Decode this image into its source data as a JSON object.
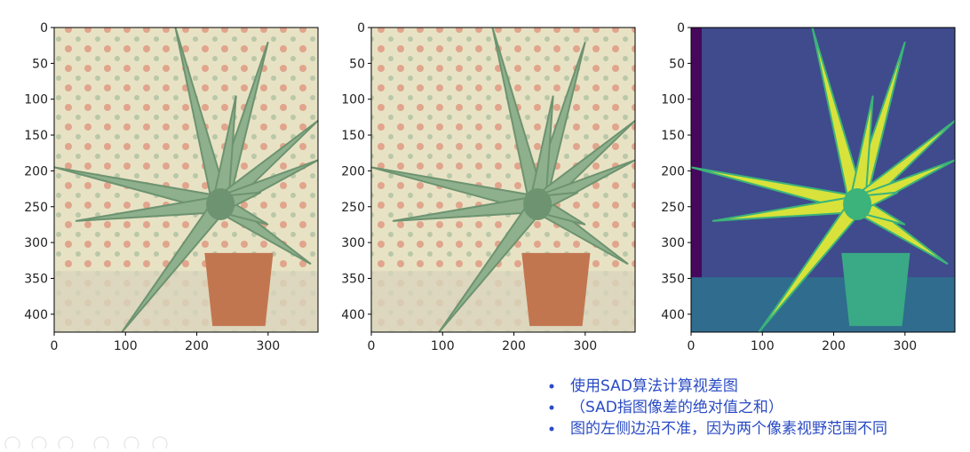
{
  "panels": [
    {
      "xlim": [
        0,
        370
      ],
      "ylim": [
        0,
        425
      ],
      "xticks": [
        0,
        100,
        200,
        300
      ],
      "yticks": [
        0,
        50,
        100,
        150,
        200,
        250,
        300,
        350,
        400
      ]
    },
    {
      "xlim": [
        0,
        370
      ],
      "ylim": [
        0,
        425
      ],
      "xticks": [
        0,
        100,
        200,
        300
      ],
      "yticks": [
        0,
        50,
        100,
        150,
        200,
        250,
        300,
        350,
        400
      ]
    },
    {
      "xlim": [
        0,
        370
      ],
      "ylim": [
        0,
        425
      ],
      "xticks": [
        0,
        100,
        200,
        300
      ],
      "yticks": [
        0,
        50,
        100,
        150,
        200,
        250,
        300,
        350,
        400
      ]
    }
  ],
  "notes": [
    "使用SAD算法计算视差图",
    "（SAD指图像差的绝对值之和）",
    "图的左侧边沿不准，因为两个像素视野范围不同"
  ]
}
